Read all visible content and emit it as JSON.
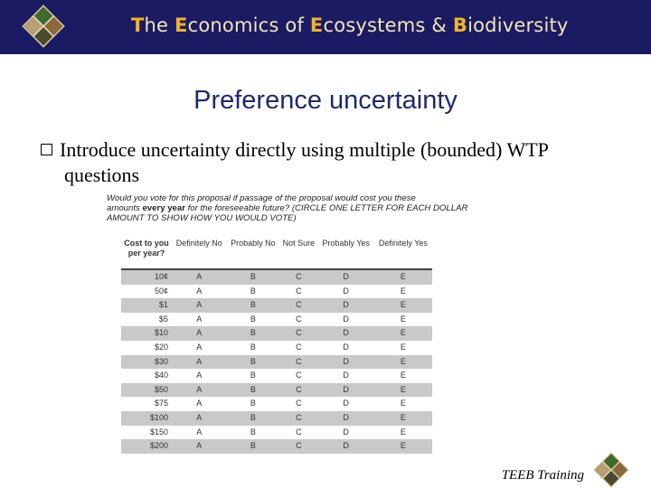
{
  "header": {
    "title_parts": [
      {
        "cap": "T",
        "rest": "he "
      },
      {
        "cap": "E",
        "rest": "conomics of "
      },
      {
        "cap": "E",
        "rest": "cosystems & "
      },
      {
        "cap": "B",
        "rest": "iodiversity"
      }
    ],
    "logo_icon": "teeb-logo-icon"
  },
  "slide": {
    "title": "Preference uncertainty",
    "bullet_line1": "Introduce uncertainty directly using multiple (bounded) WTP",
    "bullet_line2": "questions"
  },
  "survey": {
    "q1": "Would you vote for this proposal if passage of the proposal would cost you these",
    "q2_pre": "amounts ",
    "q2_bold": "every year",
    "q2_post": " for the foreseeable future?  (CIRCLE ONE LETTER FOR EACH DOLLAR",
    "q3": "AMOUNT TO SHOW HOW YOU WOULD VOTE)",
    "headers": [
      "Cost to you per year?",
      "Definitely No",
      "Probably No",
      "Not Sure",
      "Probably Yes",
      "Definitely Yes"
    ],
    "letters": [
      "A",
      "B",
      "C",
      "D",
      "E"
    ],
    "rows": [
      "10¢",
      "50¢",
      "$1",
      "$5",
      "$10",
      "$20",
      "$30",
      "$40",
      "$50",
      "$75",
      "$100",
      "$150",
      "$200"
    ]
  },
  "footer": {
    "label": "TEEB Training"
  },
  "colors": {
    "header_bg": "#1b1b63",
    "title_color": "#1e2a6a",
    "header_capital": "#f0b428",
    "row_shade": "#c9c9c9"
  }
}
